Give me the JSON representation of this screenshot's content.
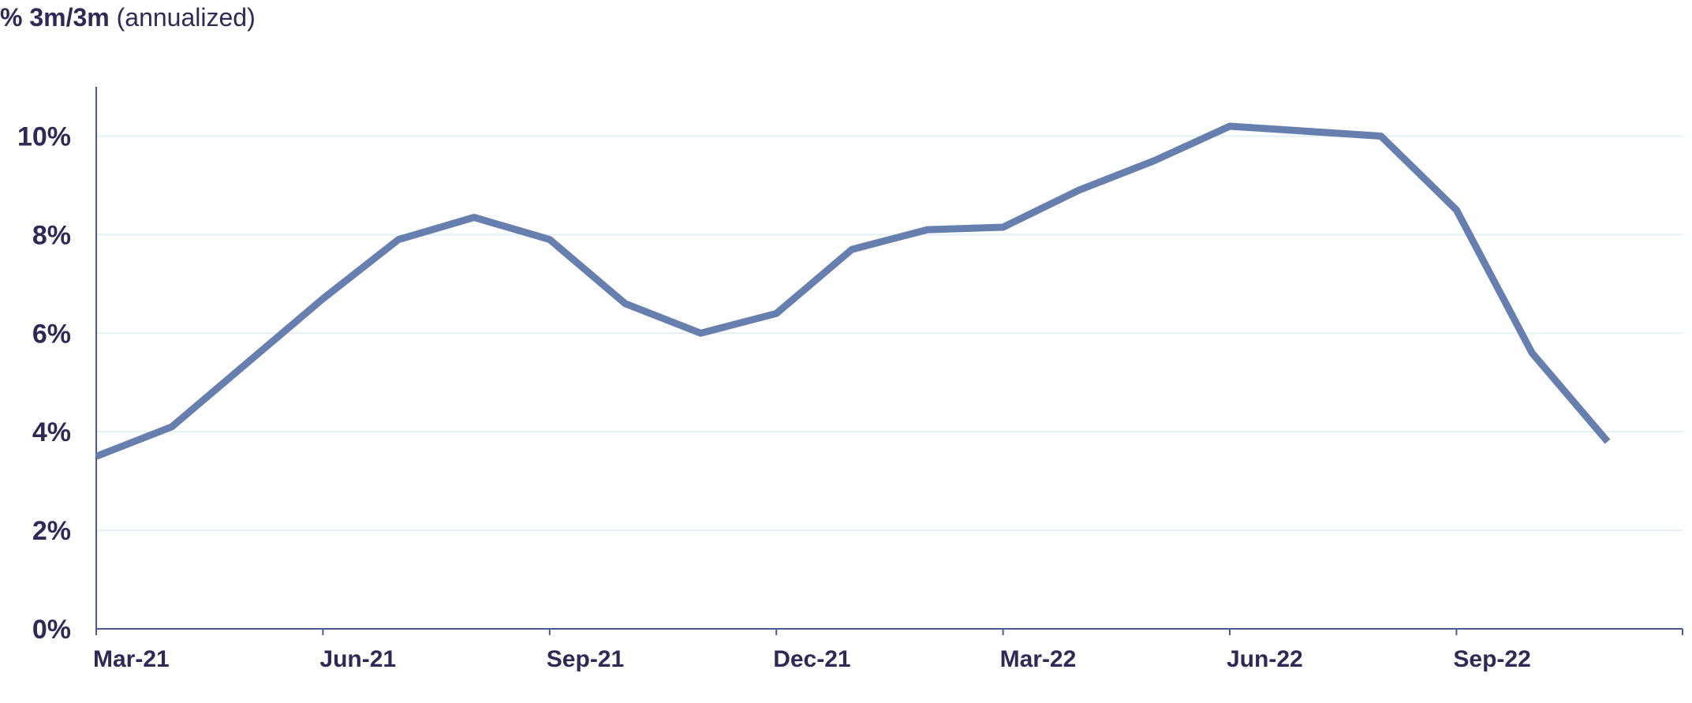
{
  "chart_data": {
    "type": "line",
    "title_bold": "% 3m/3m",
    "title_rest": "(annualized)",
    "xlabel": "",
    "ylabel": "",
    "ylim": [
      0,
      11
    ],
    "y_ticks": [
      0,
      2,
      4,
      6,
      8,
      10
    ],
    "y_tick_labels": [
      "0%",
      "2%",
      "4%",
      "6%",
      "8%",
      "10%"
    ],
    "x_ticks": [
      "2021-03",
      "2021-06",
      "2021-09",
      "2021-12",
      "2022-03",
      "2022-06",
      "2022-09"
    ],
    "x_tick_labels": [
      "Mar-21",
      "Jun-21",
      "Sep-21",
      "Dec-21",
      "Mar-22",
      "Jun-22",
      "Sep-22"
    ],
    "x_range": [
      "2021-03",
      "2022-12"
    ],
    "grid": true,
    "legend": "none",
    "line_color": "#667fae",
    "grid_color": "#e3f0f5",
    "axis_color": "#4a5a96",
    "text_color": "#2e2a55",
    "series": [
      {
        "x": [
          "2021-03",
          "2021-04",
          "2021-05",
          "2021-06",
          "2021-07",
          "2021-08",
          "2021-09",
          "2021-10",
          "2021-11",
          "2021-12",
          "2022-01",
          "2022-02",
          "2022-03",
          "2022-04",
          "2022-05",
          "2022-06",
          "2022-07",
          "2022-08",
          "2022-09",
          "2022-10",
          "2022-11"
        ],
        "values": [
          3.5,
          4.1,
          5.4,
          6.7,
          7.9,
          8.35,
          7.9,
          6.6,
          6.0,
          6.4,
          7.7,
          8.1,
          8.15,
          8.9,
          9.5,
          10.2,
          10.1,
          10.0,
          8.5,
          5.6,
          3.8
        ]
      }
    ]
  }
}
